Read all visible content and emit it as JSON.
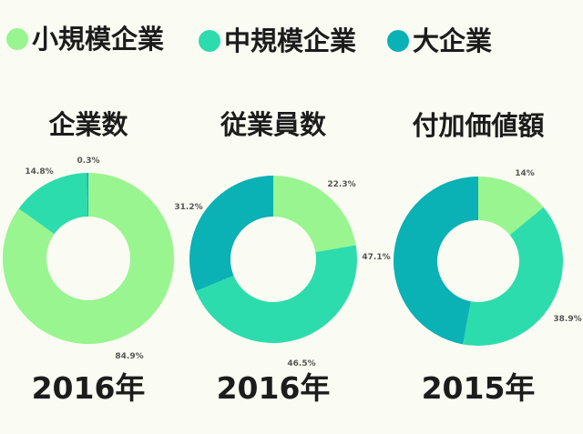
{
  "colors": {
    "small": "#98f58f",
    "medium": "#2ddcac",
    "large": "#0ab1b5",
    "hole": "#fafbf2",
    "text": "#1c1c1c",
    "label": "#555555"
  },
  "legend": [
    {
      "key": "small",
      "label": "小規模企業"
    },
    {
      "key": "medium",
      "label": "中規模企業"
    },
    {
      "key": "large",
      "label": "大企業"
    }
  ],
  "chart_data": [
    {
      "type": "pie",
      "title": "企業数",
      "footer": "2016年",
      "slices": [
        {
          "key": "small",
          "value": 84.9,
          "label": "84.9%"
        },
        {
          "key": "medium",
          "value": 14.8,
          "label": "14.8%"
        },
        {
          "key": "large",
          "value": 0.3,
          "label": "0.3%"
        }
      ]
    },
    {
      "type": "pie",
      "title": "従業員数",
      "footer": "2016年",
      "slices": [
        {
          "key": "small",
          "value": 22.3,
          "label": "22.3%"
        },
        {
          "key": "medium",
          "value": 46.5,
          "label": "46.5%"
        },
        {
          "key": "large",
          "value": 31.2,
          "label": "31.2%"
        }
      ]
    },
    {
      "type": "pie",
      "title": "付加価値額",
      "footer": "2015年",
      "slices": [
        {
          "key": "small",
          "value": 14,
          "label": "14%"
        },
        {
          "key": "medium",
          "value": 38.9,
          "label": "38.9%"
        },
        {
          "key": "large",
          "value": 47.1,
          "label": "47.1%"
        }
      ]
    }
  ]
}
